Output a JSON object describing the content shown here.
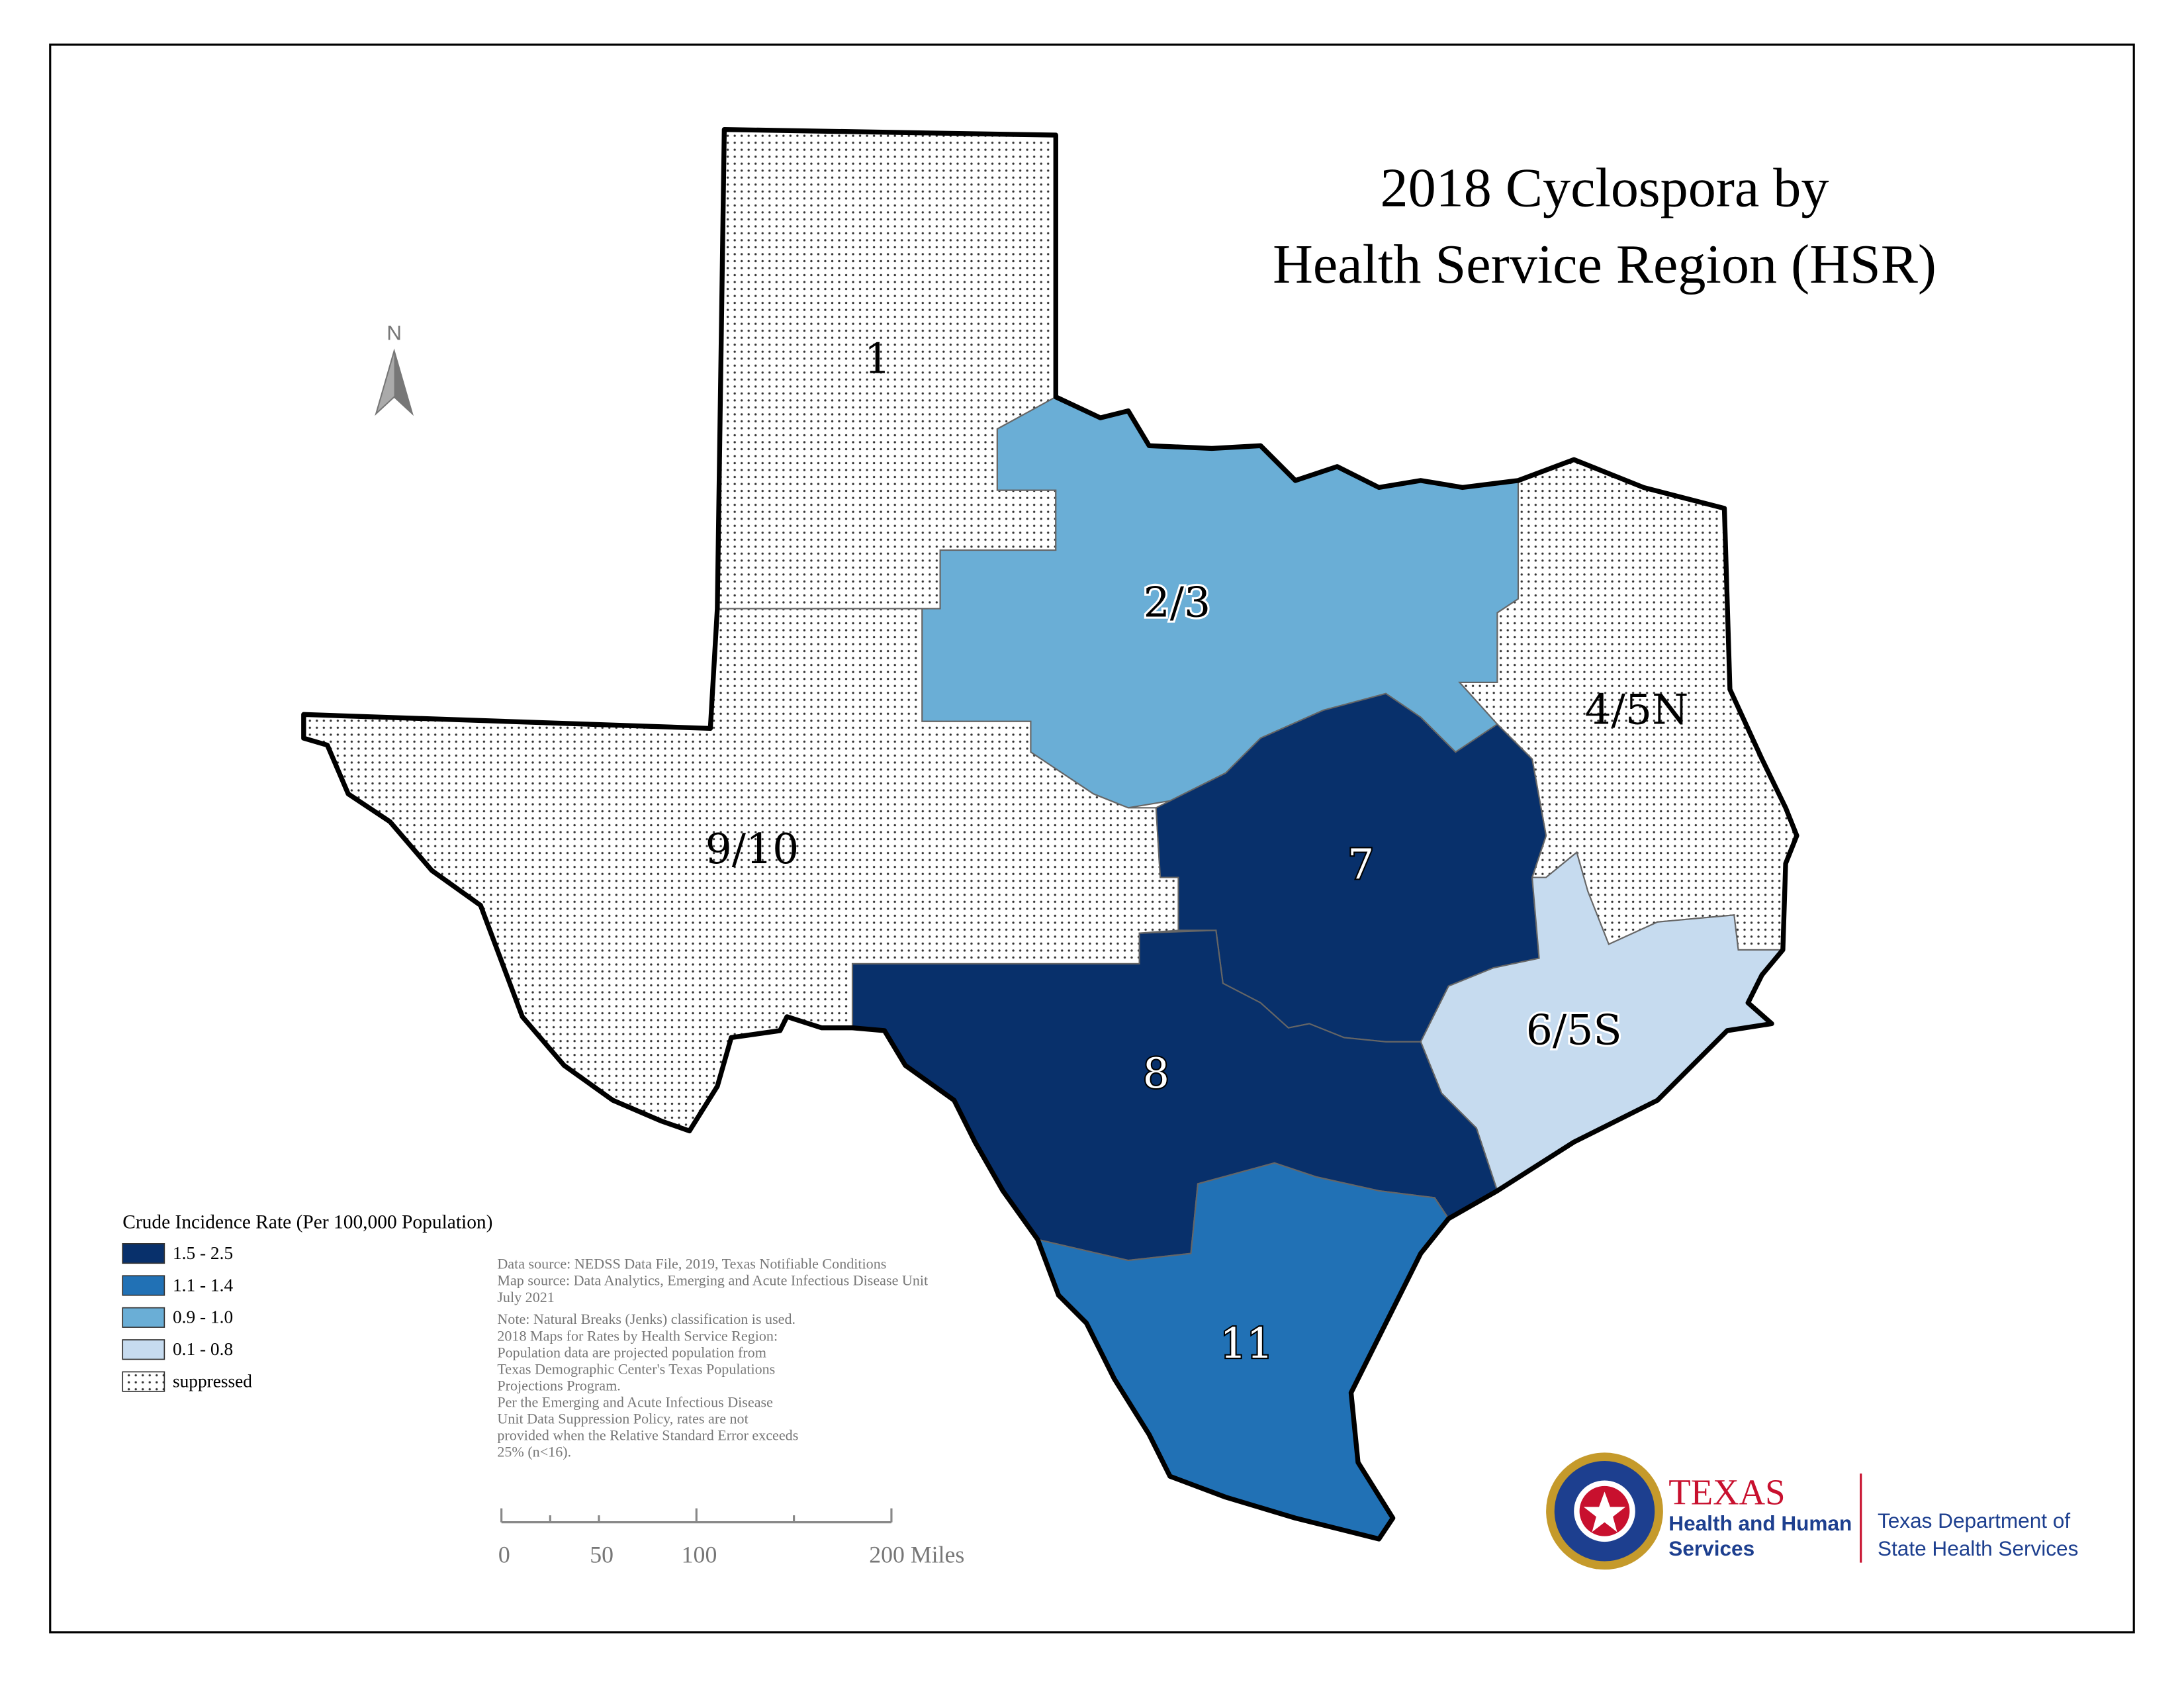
{
  "title": [
    "2018 Cyclospora by",
    "Health Service Region (HSR)"
  ],
  "north": "N",
  "regions": [
    {
      "label": "1",
      "fill": "#ffffff",
      "pattern": "dots"
    },
    {
      "label": "2/3",
      "fill": "#6aaed6",
      "pattern": null
    },
    {
      "label": "4/5N",
      "fill": "#ffffff",
      "pattern": "dots"
    },
    {
      "label": "9/10",
      "fill": "#ffffff",
      "pattern": "dots"
    },
    {
      "label": "7",
      "fill": "#08306b",
      "pattern": null
    },
    {
      "label": "6/5S",
      "fill": "#c6dbef",
      "pattern": null
    },
    {
      "label": "8",
      "fill": "#08306b",
      "pattern": null
    },
    {
      "label": "11",
      "fill": "#2171b5",
      "pattern": null
    }
  ],
  "legend": {
    "title": "Crude Incidence Rate (Per 100,000 Population)",
    "items": [
      {
        "label": "1.5 - 2.5",
        "fill": "#08306b",
        "pattern": null
      },
      {
        "label": "1.1 - 1.4",
        "fill": "#2171b5",
        "pattern": null
      },
      {
        "label": "0.9 - 1.0",
        "fill": "#6aaed6",
        "pattern": null
      },
      {
        "label": "0.1 - 0.8",
        "fill": "#c6dbef",
        "pattern": null
      },
      {
        "label": "suppressed",
        "fill": "#ffffff",
        "pattern": "dots"
      }
    ]
  },
  "notes": [
    "Data source: NEDSS Data File, 2019, Texas Notifiable Conditions",
    "Map source: Data Analytics, Emerging and Acute Infectious Disease Unit",
    "July 2021",
    "Note:  Natural Breaks (Jenks) classification is used.",
    "2018 Maps for Rates by Health Service Region:",
    "Population data are projected population from",
    "Texas Demographic Center's Texas Populations",
    "Projections Program.",
    "Per the Emerging and Acute Infectious Disease",
    "Unit Data Suppression Policy, rates are not",
    "provided when the Relative Standard Error exceeds",
    "25% (n<16)."
  ],
  "scale_bar": {
    "labels": [
      "0",
      "50",
      "100",
      "200 Miles"
    ]
  },
  "logo": {
    "agency": [
      "TEXAS",
      "Health and Human",
      "Services"
    ],
    "department": [
      "Texas Department of",
      "State Health Services"
    ]
  }
}
